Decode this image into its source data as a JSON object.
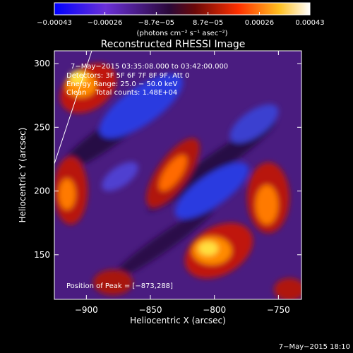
{
  "chart_data": {
    "type": "heatmap",
    "title": "Reconstructed RHESSI Image",
    "xlabel": "Heliocentric X (arcsec)",
    "ylabel": "Heliocentric Y (arcsec)",
    "xlim": [
      -925,
      -732
    ],
    "ylim": [
      115,
      310
    ],
    "x_ticks": [
      -900,
      -850,
      -800,
      -750
    ],
    "x_tick_labels": [
      "−900",
      "−850",
      "−800",
      "−750"
    ],
    "y_ticks": [
      150,
      200,
      250,
      300
    ],
    "y_tick_labels": [
      "150",
      "200",
      "250",
      "300"
    ],
    "colorbar": {
      "range": [
        -0.00043,
        0.00043
      ],
      "tick_values": [
        -0.00043,
        -0.00026,
        -8.7e-05,
        8.7e-05,
        0.00026,
        0.00043
      ],
      "tick_labels": [
        "−0.00043",
        "−0.00026",
        "−8.7e−05",
        "8.7e−05",
        "0.00026",
        "0.00043"
      ],
      "unit_label": "(photons cm⁻² s⁻¹ asec⁻²)",
      "colors": [
        "#0000ff",
        "#8a3ac8",
        "#3c0a58",
        "#aa1010",
        "#ff6a00",
        "#ffe050",
        "#ffffff"
      ]
    },
    "info_lines": [
      "7−May−2015 03:35:08.000 to 03:42:00.000",
      "Detectors: 3F 5F 6F 7F 8F 9F, Att 0",
      "Energy Range: 25.0 − 50.0 keV",
      "Clean    Total counts: 1.48E+04"
    ],
    "peak_label": "Position of Peak = [−873,288]",
    "peak": [
      -873,
      288
    ],
    "grid": false
  },
  "footer": {
    "timestamp": "7−May−2015 18:10"
  }
}
